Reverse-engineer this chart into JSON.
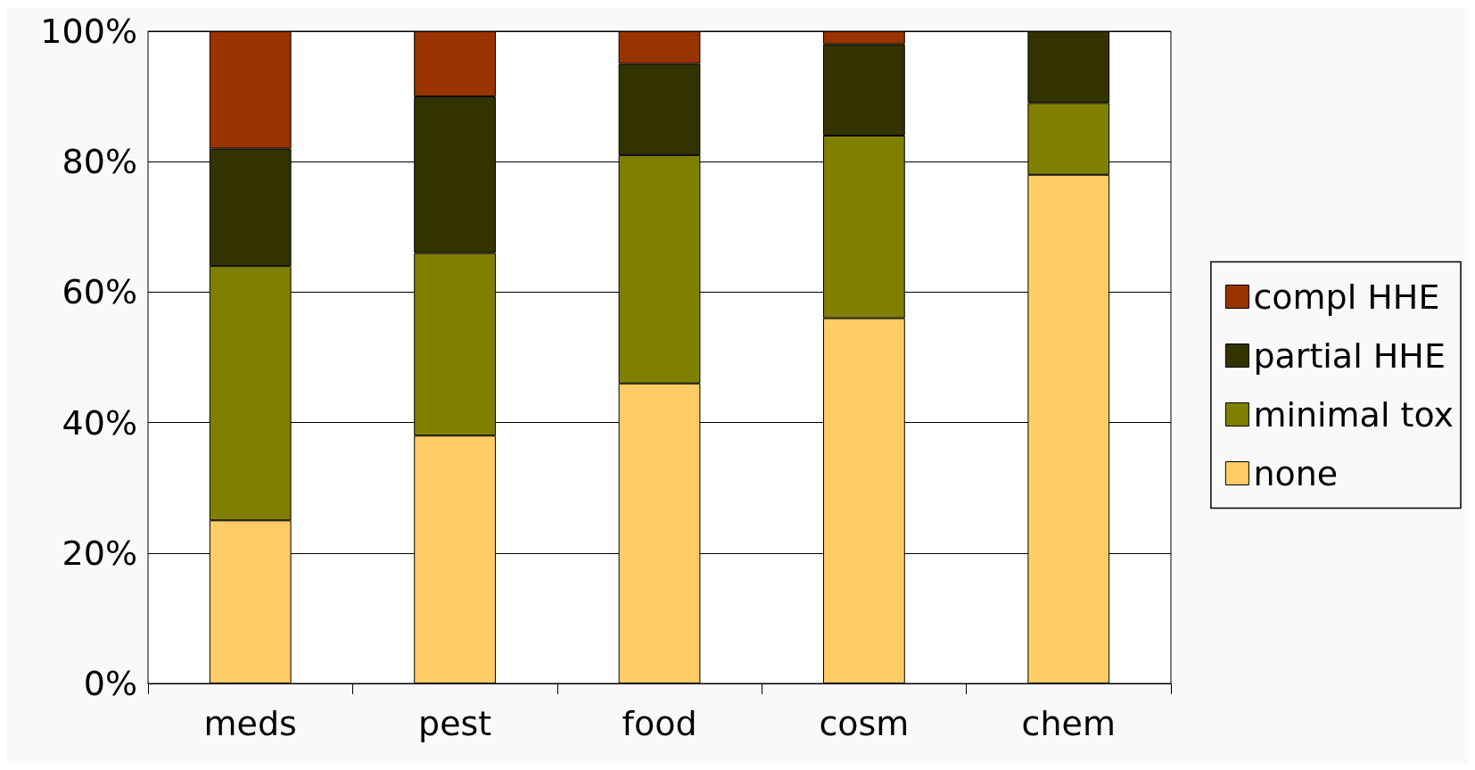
{
  "chart_data": {
    "type": "bar",
    "stacked": true,
    "categories": [
      "meds",
      "pest",
      "food",
      "cosm",
      "chem"
    ],
    "series": [
      {
        "name": "none",
        "color": "#ffcc66",
        "values": [
          25,
          38,
          46,
          56,
          78
        ]
      },
      {
        "name": "minimal tox",
        "color": "#808000",
        "values": [
          39,
          28,
          35,
          28,
          11
        ]
      },
      {
        "name": "partial HHE",
        "color": "#333300",
        "values": [
          18,
          24,
          14,
          14,
          11
        ]
      },
      {
        "name": "compl HHE",
        "color": "#993300",
        "values": [
          18,
          10,
          5,
          2,
          0
        ]
      }
    ],
    "ylim": [
      0,
      100
    ],
    "yticks": [
      {
        "value": 0,
        "label": "0%"
      },
      {
        "value": 20,
        "label": "20%"
      },
      {
        "value": 40,
        "label": "40%"
      },
      {
        "value": 60,
        "label": "60%"
      },
      {
        "value": 80,
        "label": "80%"
      },
      {
        "value": 100,
        "label": "100%"
      }
    ],
    "grid": "y",
    "legend": "right"
  }
}
